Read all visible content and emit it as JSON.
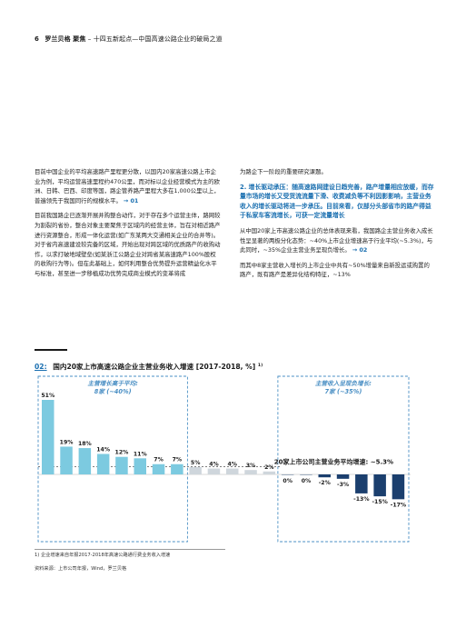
{
  "header": {
    "page_number": "6",
    "brand": "罗兰贝格 聚焦",
    "subtitle": "– 十四五新起点—中国高速公路企业的破局之道"
  },
  "left_column": {
    "p1": "目前中国企业的平均高速路产里程更分散，以国内20家高速公路上市企业为例，平均运营高速里程约470公里，而对标以企业经营模式为主的欧洲、日韩、巴西、印度等国，路企管养路产里程大多在1,000公里以上，普遍领先于我国同行的规模水平。",
    "p1_ref": "→ 01",
    "p2": "目前我国路企已逐渐开展并购整合动作，对于存在多个运营主体，路网较为割裂的省份，整合对象主要聚焦于区域内的经营主体，旨在对相近路产进行资源整合，形成一体化运营(如广东某两大交通相关企业的合并等)。对于省内高速建设较完备的区域，开始出现对跨区域的优质路产的收购动作，以求打破地域壁垒(如某浙江公路企业对跨省某高速路产100%股权的收购行为等)。但在此基础上，如何利用整合优势提升运营精益化水平与标准，甚至进一步移植成功优势完成商业模式的变革将成"
  },
  "right_column": {
    "p1": "为路企下一阶段的重要研究课题。",
    "highlight": "2. 增长驱动承压：随高速路网建设日趋完善，路产增量相应放缓，而存量市场的增长又受货流流量下滑、收费减负等不利因影影响，主营业务收入的增长驱动将进一步承压。目前来看，仅部分头部省市的路产得益于私家车客流增长，可获一定流量增长",
    "p2": "从中国20家上市高速公路企业的总体表现来看，我国路企主营业务收入成长性呈显著的两极分化态势：~40%上市企业增速高于行业平均(~5.3%)，与此同时，~35%企业主营业务呈现负增长。",
    "p2_ref": "→ 02",
    "p3": "而其中8家主营收入增长的上市企业中共有~50%增量来自新投运或购置的路产，既有路产是差异化结构特征，~13%"
  },
  "exhibit": {
    "number": "02:",
    "title": "国内20家上市高速公路企业主营业务收入增速 [2017-2018, %]",
    "title_sup": "1)",
    "footnote": "1) 企业增速来自年报2017-2018年高速公路通行费业务收入增速",
    "source": "资料来源：上市公司年报，Wind，罗兰贝格"
  },
  "chart_data": {
    "type": "bar",
    "values": [
      51,
      19,
      18,
      14,
      12,
      11,
      7,
      7,
      5,
      4,
      4,
      3,
      2,
      0,
      0,
      -2,
      -3,
      -13,
      -15,
      -17
    ],
    "labels": [
      "51%",
      "19%",
      "18%",
      "14%",
      "12%",
      "11%",
      "7%",
      "7%",
      "5%",
      "4%",
      "4%",
      "3%",
      "2%",
      "0%",
      "0%",
      "-2%",
      "-3%",
      "-13%",
      "-15%",
      "-17%"
    ],
    "group_high": {
      "label_line1": "主营增长高于平均:",
      "label_line2": "8家 (~40%)",
      "count": 8
    },
    "group_negative": {
      "label_line1": "主营收入呈现负增长:",
      "label_line2": "7家 (~35%)",
      "count": 7
    },
    "average": {
      "value": 5.3,
      "label": "20家上市公司主营业务平均增速: ~5.3%"
    },
    "colors": {
      "high": "#7ccae0",
      "mid": "#cfd6dc",
      "negative": "#1b3f6e",
      "group_box": "#4a8fc4"
    }
  }
}
